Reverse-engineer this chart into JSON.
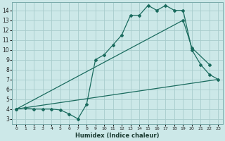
{
  "xlabel": "Humidex (Indice chaleur)",
  "xlim": [
    -0.5,
    23.5
  ],
  "ylim": [
    2.5,
    14.8
  ],
  "yticks": [
    3,
    4,
    5,
    6,
    7,
    8,
    9,
    10,
    11,
    12,
    13,
    14
  ],
  "xticks": [
    0,
    1,
    2,
    3,
    4,
    5,
    6,
    7,
    8,
    9,
    10,
    11,
    12,
    13,
    14,
    15,
    16,
    17,
    18,
    19,
    20,
    21,
    22,
    23
  ],
  "bg_color": "#cce8e8",
  "grid_color": "#a8cccc",
  "line_color": "#1a6b5e",
  "line1_x": [
    0,
    1,
    2,
    3,
    4,
    5,
    6,
    7,
    8,
    9,
    10,
    11,
    12,
    13,
    14,
    15,
    16,
    17,
    18,
    19,
    20,
    21,
    22,
    23
  ],
  "line1_y": [
    4.0,
    4.1,
    4.0,
    4.0,
    4.0,
    3.9,
    3.5,
    3.0,
    4.5,
    9.0,
    9.5,
    10.5,
    11.5,
    13.5,
    13.5,
    14.5,
    14.0,
    14.5,
    14.0,
    14.0,
    10.0,
    8.5,
    7.5,
    7.0
  ],
  "line2_x": [
    0,
    23
  ],
  "line2_y": [
    4.0,
    7.0
  ],
  "line3_x": [
    0,
    19,
    20,
    22
  ],
  "line3_y": [
    4.0,
    13.0,
    10.2,
    8.5
  ]
}
